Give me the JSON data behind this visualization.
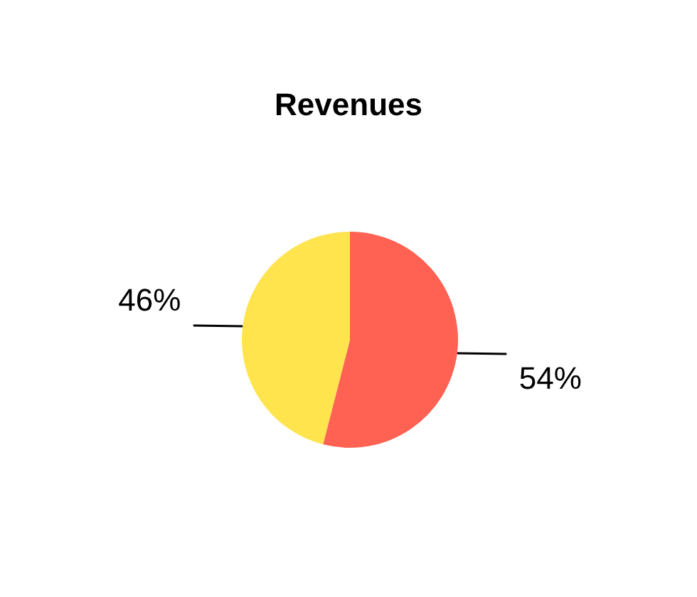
{
  "chart_data": {
    "type": "pie",
    "title": "Revenues",
    "categories": [
      null,
      null
    ],
    "values": [
      54,
      46
    ],
    "colors": [
      "#ff6152",
      "#ffe44e"
    ],
    "value_labels": [
      "54%",
      "46%"
    ]
  }
}
